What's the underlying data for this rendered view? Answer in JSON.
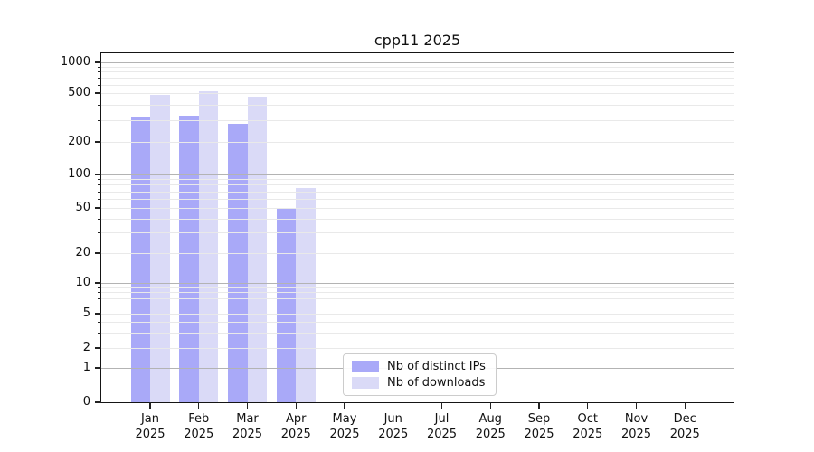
{
  "title": "cpp11 2025",
  "chart_data": {
    "type": "bar",
    "title": "cpp11 2025",
    "categories": [
      "Jan",
      "Feb",
      "Mar",
      "Apr",
      "May",
      "Jun",
      "Jul",
      "Aug",
      "Sep",
      "Oct",
      "Nov",
      "Dec"
    ],
    "year": "2025",
    "series": [
      {
        "name": "Nb of distinct IPs",
        "color": "#a9a9f8",
        "values": [
          320,
          325,
          280,
          50,
          null,
          null,
          null,
          null,
          null,
          null,
          null,
          null
        ]
      },
      {
        "name": "Nb of downloads",
        "color": "#dadaf7",
        "values": [
          480,
          520,
          465,
          75,
          null,
          null,
          null,
          null,
          null,
          null,
          null,
          null
        ]
      }
    ],
    "y_scale": "symlog",
    "y_ticks": [
      0,
      1,
      2,
      5,
      10,
      20,
      50,
      100,
      200,
      500,
      1000
    ],
    "ylim": [
      0,
      1000
    ],
    "grid": true,
    "grid_major_color": "#b3b3b3",
    "grid_minor_color": "#e9e9e9",
    "legend_position": "lower center"
  }
}
